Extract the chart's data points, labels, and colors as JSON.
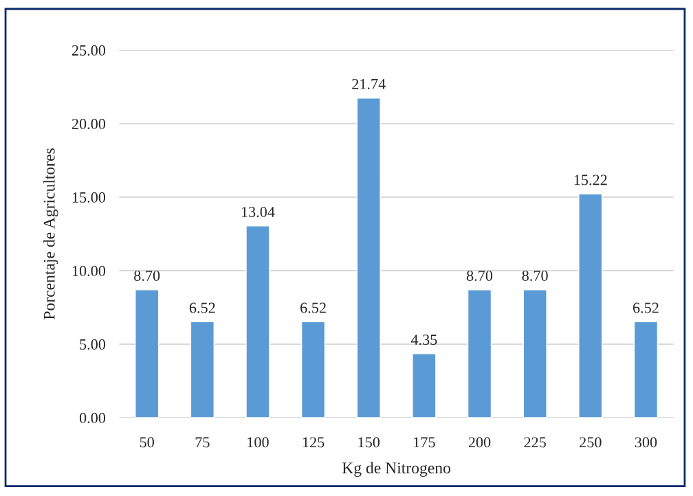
{
  "chart_data": {
    "type": "bar",
    "xlabel": "Kg de Nitrogeno",
    "ylabel": "Porcentaje de Agricultores",
    "categories": [
      "50",
      "75",
      "100",
      "125",
      "150",
      "175",
      "200",
      "225",
      "250",
      "300"
    ],
    "values": [
      8.7,
      6.52,
      13.04,
      6.52,
      21.74,
      4.35,
      8.7,
      8.7,
      15.22,
      6.52
    ],
    "value_labels": [
      "8.70",
      "6.52",
      "13.04",
      "6.52",
      "21.74",
      "4.35",
      "8.70",
      "8.70",
      "15.22",
      "6.52"
    ],
    "color": "#5b9bd5",
    "ylim": [
      0,
      25
    ],
    "yticks": [
      {
        "value": 0,
        "label": "0.00"
      },
      {
        "value": 5,
        "label": "5.00"
      },
      {
        "value": 10,
        "label": "10.00"
      },
      {
        "value": 15,
        "label": "15.00"
      },
      {
        "value": 20,
        "label": "20.00"
      },
      {
        "value": 25,
        "label": "25.00"
      }
    ],
    "grid": "y",
    "legend": false
  }
}
